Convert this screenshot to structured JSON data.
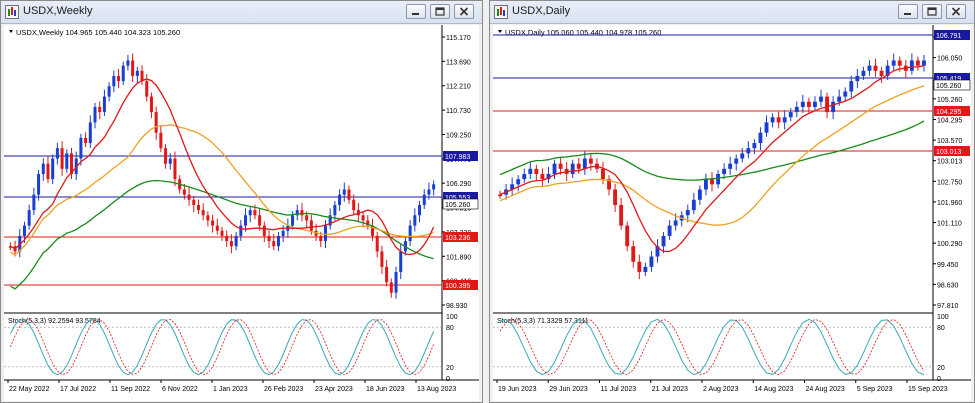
{
  "windows": [
    {
      "id": "weekly",
      "title": "USDX,Weekly",
      "info": "USDX,Weekly  104.965 105.440 104.323 105.260",
      "price_scale": [
        "115.170",
        "113.690",
        "112.210",
        "110.730",
        "109.250",
        "107.770",
        "106.290",
        "104.810",
        "103.330",
        "101.890",
        "100.410",
        "98.930"
      ],
      "levels": [
        {
          "value": "107.983",
          "color": "#1a1aa0"
        },
        {
          "value": "105.553",
          "color": "#1a1aa0"
        },
        {
          "value": "103.236",
          "color": "#e01818"
        },
        {
          "value": "100.395",
          "color": "#e01818"
        }
      ],
      "current_price": "105.260",
      "stoch_label": "Stoch(5,3,3) 92.2594 93.5784",
      "stoch_scale": [
        "100",
        "80",
        "20",
        "0"
      ],
      "dates": [
        "22 May 2022",
        "17 Jul 2022",
        "11 Sep 2022",
        "6 Nov 2022",
        "1 Jan 2023",
        "26 Feb 2023",
        "23 Apr 2023",
        "18 Jun 2023",
        "13 Aug 2023"
      ]
    },
    {
      "id": "daily",
      "title": "USDX,Daily",
      "info": "USDX,Daily  105.060 105.440 104.978 105.260",
      "price_scale": [
        "106.791",
        "106.050",
        "105.419",
        "105.260",
        "104.295",
        "103.570",
        "103.013",
        "102.750",
        "101.960",
        "101.110",
        "100.290",
        "99.450",
        "98.630",
        "97.810"
      ],
      "levels": [
        {
          "value": "106.791",
          "color": "#1a1aa0"
        },
        {
          "value": "105.419",
          "color": "#1a1aa0"
        },
        {
          "value": "104.295",
          "color": "#e01818"
        },
        {
          "value": "103.013",
          "color": "#e01818"
        }
      ],
      "current_price": "105.260",
      "stoch_label": "Stoch(5,3,3) 71.3329 57.3111",
      "stoch_scale": [
        "100",
        "80",
        "20",
        "0"
      ],
      "dates": [
        "19 Jun 2023",
        "29 Jun 2023",
        "11 Jul 2023",
        "21 Jul 2023",
        "2 Aug 2023",
        "14 Aug 2023",
        "24 Aug 2023",
        "5 Sep 2023",
        "15 Sep 2023"
      ]
    }
  ],
  "colors": {
    "bull": "#1a3fd0",
    "bear": "#e01818",
    "ma_fast": "#e01818",
    "ma_mid": "#f0a020",
    "ma_slow": "#1a8a1a",
    "stoch_main": "#3aa8b8",
    "stoch_signal": "#e01818"
  }
}
